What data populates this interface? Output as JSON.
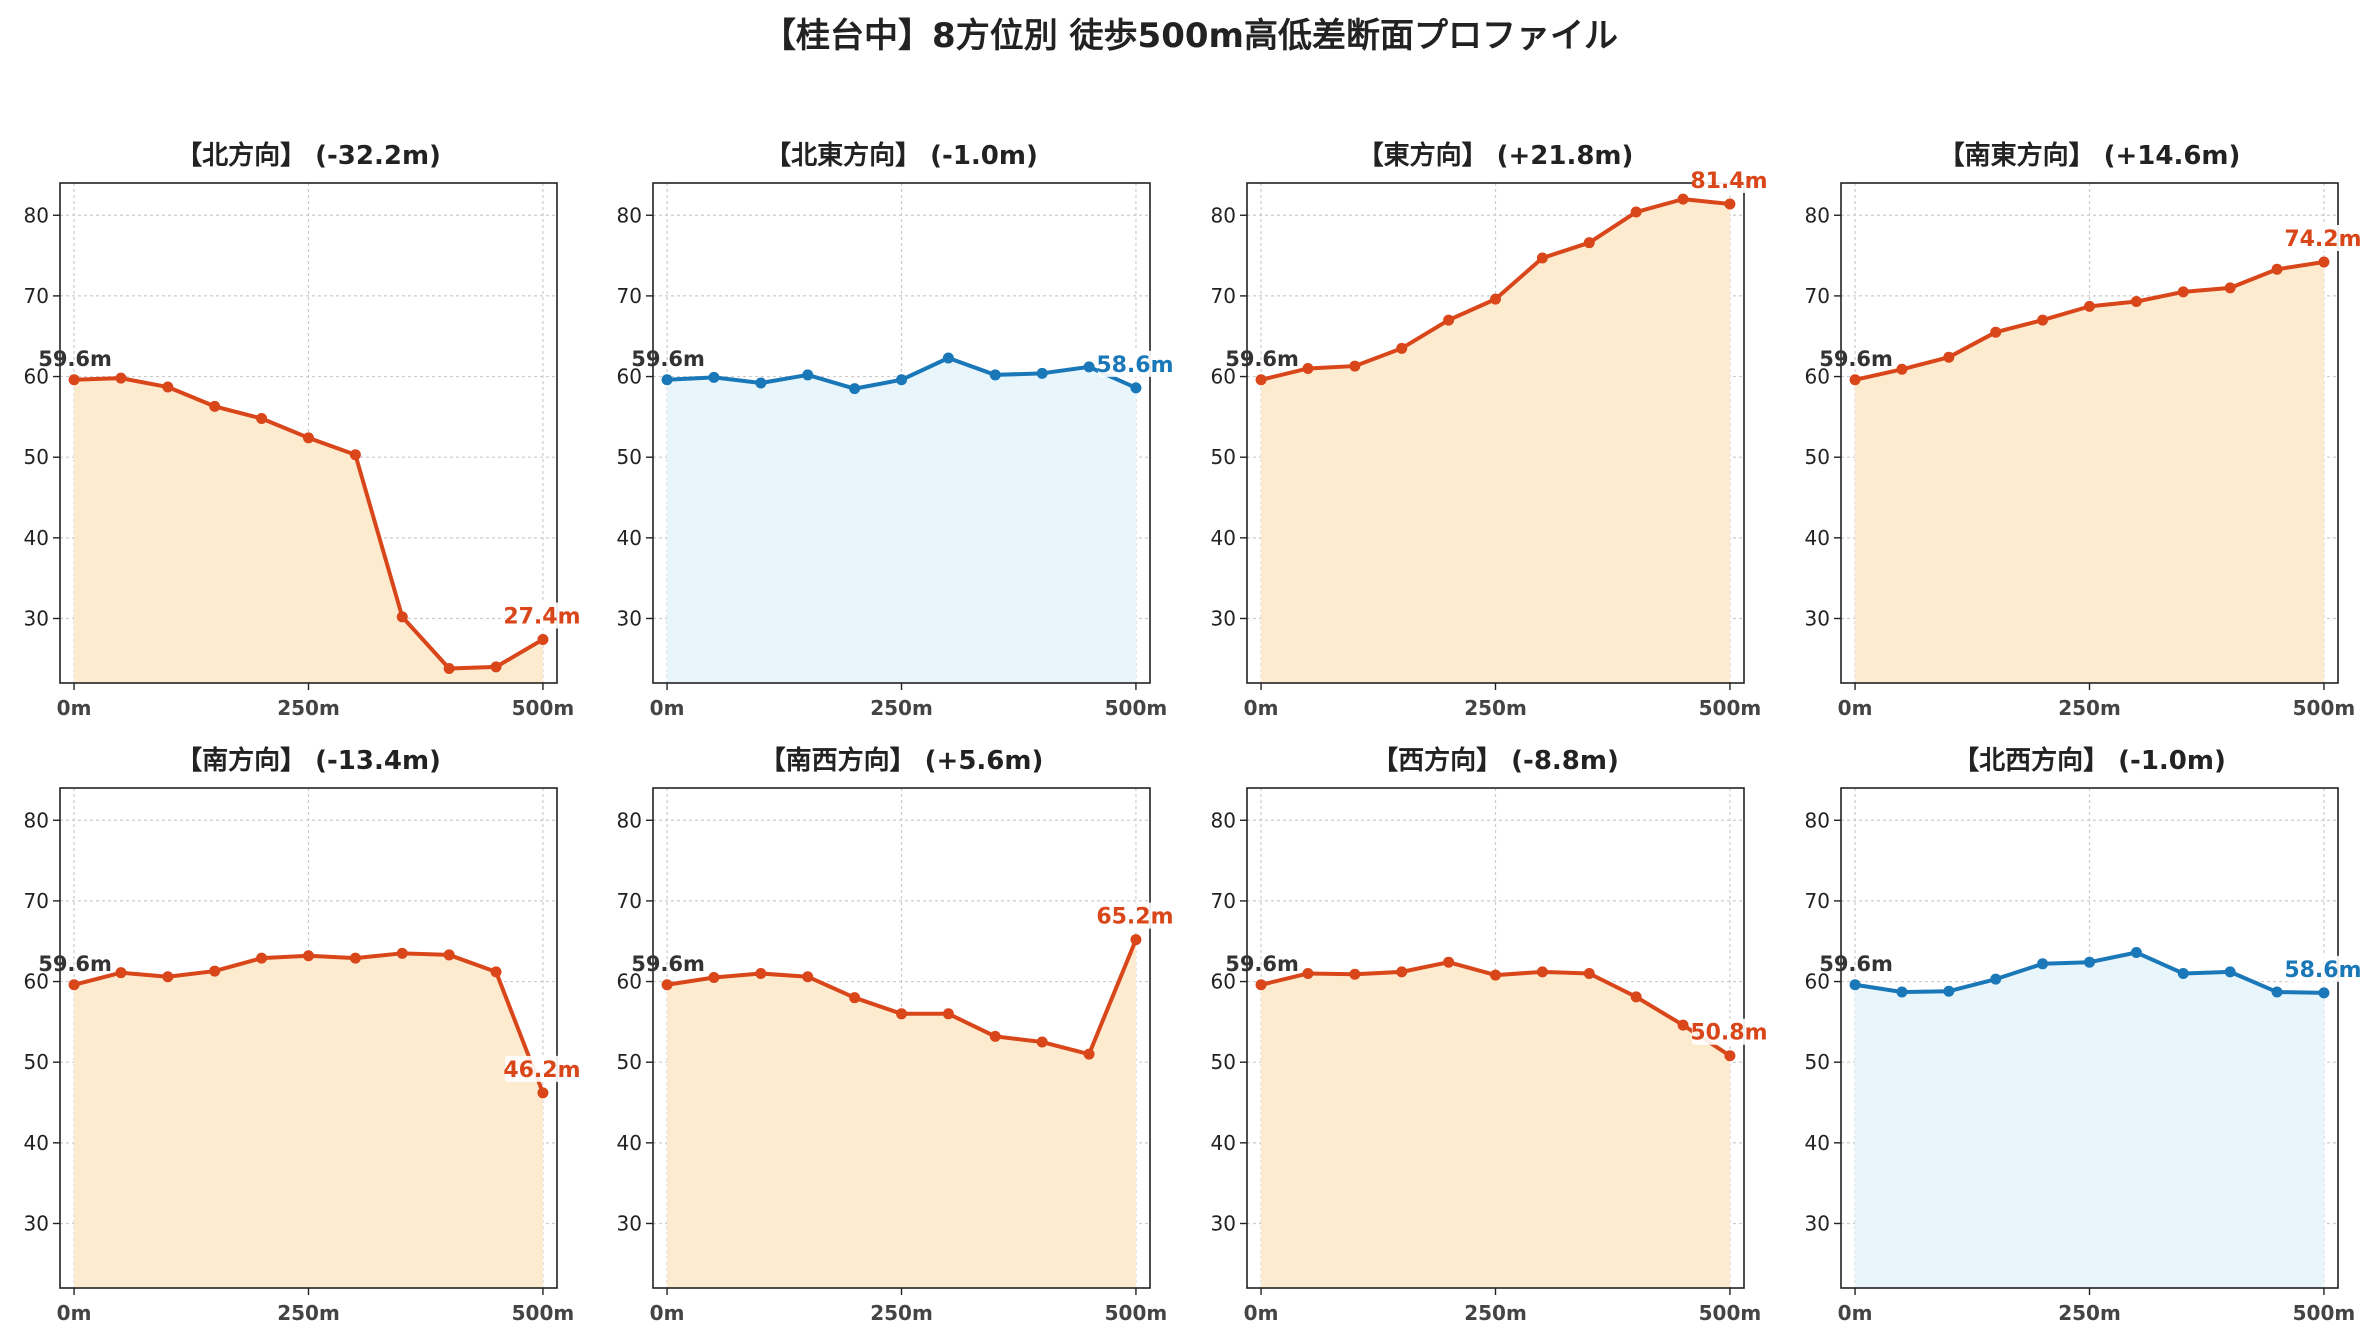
{
  "title": "【桂台中】8方位別 徒歩500m高低差断面プロファイル",
  "colors": {
    "down_line": "#d9461a",
    "down_fill": "#fdebd0",
    "flat_line": "#1a78b8",
    "flat_fill": "#e8f6fc",
    "start_label": "#333333",
    "grid": "#cccccc"
  },
  "chart_data": [
    {
      "type": "area",
      "title": "【北方向】 (-32.2m)",
      "tone": "down",
      "x": [
        0,
        50,
        100,
        150,
        200,
        250,
        300,
        350,
        400,
        450,
        500
      ],
      "y": [
        59.6,
        59.8,
        58.7,
        56.3,
        54.8,
        52.4,
        50.3,
        30.2,
        23.8,
        24.0,
        27.4
      ],
      "start_label": "59.6m",
      "end_label": "27.4m",
      "xticks": [
        "0m",
        "250m",
        "500m"
      ],
      "yticks": [
        "30",
        "40",
        "50",
        "60",
        "70",
        "80"
      ],
      "xlim": [
        -15,
        515
      ],
      "ylim": [
        22,
        84
      ],
      "grid": true
    },
    {
      "type": "area",
      "title": "【北東方向】 (-1.0m)",
      "tone": "flat",
      "x": [
        0,
        50,
        100,
        150,
        200,
        250,
        300,
        350,
        400,
        450,
        500
      ],
      "y": [
        59.6,
        59.9,
        59.2,
        60.2,
        58.5,
        59.6,
        62.3,
        60.2,
        60.4,
        61.2,
        58.6
      ],
      "start_label": "59.6m",
      "end_label": "58.6m",
      "xticks": [
        "0m",
        "250m",
        "500m"
      ],
      "yticks": [
        "30",
        "40",
        "50",
        "60",
        "70",
        "80"
      ],
      "xlim": [
        -15,
        515
      ],
      "ylim": [
        22,
        84
      ],
      "grid": true
    },
    {
      "type": "area",
      "title": "【東方向】 (+21.8m)",
      "tone": "down",
      "x": [
        0,
        50,
        100,
        150,
        200,
        250,
        300,
        350,
        400,
        450,
        500
      ],
      "y": [
        59.6,
        61.0,
        61.3,
        63.5,
        67.0,
        69.6,
        74.7,
        76.6,
        80.4,
        82.0,
        81.4
      ],
      "start_label": "59.6m",
      "end_label": "81.4m",
      "xticks": [
        "0m",
        "250m",
        "500m"
      ],
      "yticks": [
        "30",
        "40",
        "50",
        "60",
        "70",
        "80"
      ],
      "xlim": [
        -15,
        515
      ],
      "ylim": [
        22,
        84
      ],
      "grid": true
    },
    {
      "type": "area",
      "title": "【南東方向】 (+14.6m)",
      "tone": "down",
      "x": [
        0,
        50,
        100,
        150,
        200,
        250,
        300,
        350,
        400,
        450,
        500
      ],
      "y": [
        59.6,
        60.9,
        62.4,
        65.5,
        67.0,
        68.7,
        69.3,
        70.5,
        71.0,
        73.3,
        74.2
      ],
      "start_label": "59.6m",
      "end_label": "74.2m",
      "xticks": [
        "0m",
        "250m",
        "500m"
      ],
      "yticks": [
        "30",
        "40",
        "50",
        "60",
        "70",
        "80"
      ],
      "xlim": [
        -15,
        515
      ],
      "ylim": [
        22,
        84
      ],
      "grid": true
    },
    {
      "type": "area",
      "title": "【南方向】 (-13.4m)",
      "tone": "down",
      "x": [
        0,
        50,
        100,
        150,
        200,
        250,
        300,
        350,
        400,
        450,
        500
      ],
      "y": [
        59.6,
        61.1,
        60.6,
        61.3,
        62.9,
        63.2,
        62.9,
        63.5,
        63.3,
        61.2,
        46.2
      ],
      "start_label": "59.6m",
      "end_label": "46.2m",
      "xticks": [
        "0m",
        "250m",
        "500m"
      ],
      "yticks": [
        "30",
        "40",
        "50",
        "60",
        "70",
        "80"
      ],
      "xlim": [
        -15,
        515
      ],
      "ylim": [
        22,
        84
      ],
      "grid": true
    },
    {
      "type": "area",
      "title": "【南西方向】 (+5.6m)",
      "tone": "down",
      "x": [
        0,
        50,
        100,
        150,
        200,
        250,
        300,
        350,
        400,
        450,
        500
      ],
      "y": [
        59.6,
        60.5,
        61.0,
        60.6,
        58.0,
        56.0,
        56.0,
        53.2,
        52.5,
        51.0,
        65.2
      ],
      "start_label": "59.6m",
      "end_label": "65.2m",
      "xticks": [
        "0m",
        "250m",
        "500m"
      ],
      "yticks": [
        "30",
        "40",
        "50",
        "60",
        "70",
        "80"
      ],
      "xlim": [
        -15,
        515
      ],
      "ylim": [
        22,
        84
      ],
      "grid": true
    },
    {
      "type": "area",
      "title": "【西方向】 (-8.8m)",
      "tone": "down",
      "x": [
        0,
        50,
        100,
        150,
        200,
        250,
        300,
        350,
        400,
        450,
        500
      ],
      "y": [
        59.6,
        61.0,
        60.9,
        61.2,
        62.4,
        60.8,
        61.2,
        61.0,
        58.1,
        54.6,
        50.8
      ],
      "start_label": "59.6m",
      "end_label": "50.8m",
      "xticks": [
        "0m",
        "250m",
        "500m"
      ],
      "yticks": [
        "30",
        "40",
        "50",
        "60",
        "70",
        "80"
      ],
      "xlim": [
        -15,
        515
      ],
      "ylim": [
        22,
        84
      ],
      "grid": true
    },
    {
      "type": "area",
      "title": "【北西方向】 (-1.0m)",
      "tone": "flat",
      "x": [
        0,
        50,
        100,
        150,
        200,
        250,
        300,
        350,
        400,
        450,
        500
      ],
      "y": [
        59.6,
        58.7,
        58.8,
        60.3,
        62.2,
        62.4,
        63.6,
        61.0,
        61.2,
        58.7,
        58.6
      ],
      "start_label": "59.6m",
      "end_label": "58.6m",
      "xticks": [
        "0m",
        "250m",
        "500m"
      ],
      "yticks": [
        "30",
        "40",
        "50",
        "60",
        "70",
        "80"
      ],
      "xlim": [
        -15,
        515
      ],
      "ylim": [
        22,
        84
      ],
      "grid": true
    }
  ]
}
